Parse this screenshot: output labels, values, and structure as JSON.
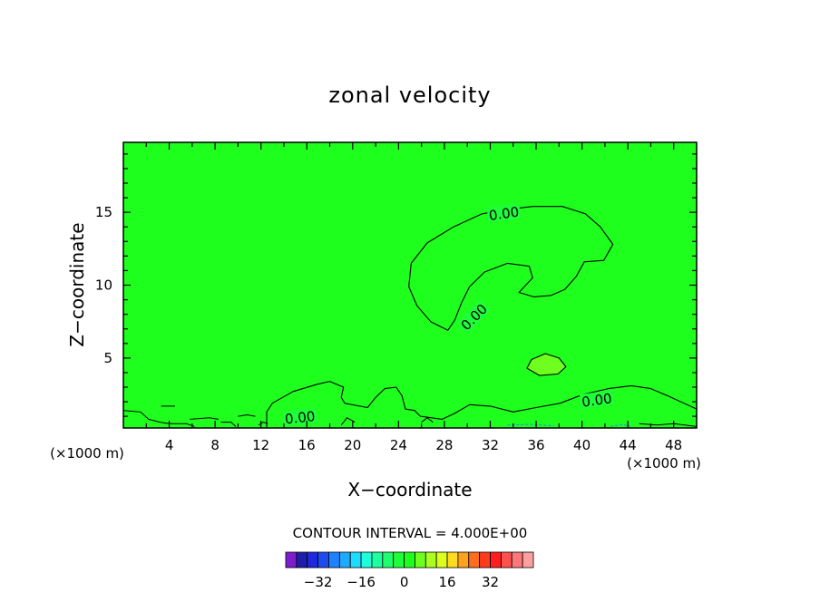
{
  "chart_data": {
    "type": "heatmap",
    "title": "zonal velocity",
    "xlabel": "X−coordinate",
    "ylabel": "Z−coordinate",
    "x_unit": "(×1000 m)",
    "xlim": [
      0,
      50
    ],
    "ylim": [
      0.2,
      19.8
    ],
    "x_ticks": [
      "4",
      "8",
      "12",
      "16",
      "20",
      "24",
      "28",
      "32",
      "36",
      "40",
      "44",
      "48"
    ],
    "y_ticks": [
      "5",
      "10",
      "15"
    ],
    "contour_interval_text": "CONTOUR INTERVAL = 4.000E+00",
    "contour_interval": 4,
    "contour_labels": [
      "0.00",
      "0.00",
      "0.00",
      "0.00"
    ],
    "background_value_range": [
      -4,
      0
    ],
    "regions": [
      {
        "name": "upper positive cell",
        "value_range": [
          0,
          4
        ],
        "poly": [
          [
            25.1,
            11.5
          ],
          [
            26.5,
            12.9
          ],
          [
            28.8,
            14.0
          ],
          [
            31.3,
            14.9
          ],
          [
            33.5,
            15.2
          ],
          [
            35.7,
            15.4
          ],
          [
            38.3,
            15.4
          ],
          [
            40.3,
            14.9
          ],
          [
            41.6,
            14.0
          ],
          [
            42.7,
            12.8
          ],
          [
            41.9,
            11.7
          ],
          [
            40.2,
            11.6
          ],
          [
            39.5,
            10.6
          ],
          [
            38.5,
            9.7
          ],
          [
            37.3,
            9.3
          ],
          [
            35.8,
            9.2
          ],
          [
            34.5,
            9.5
          ],
          [
            35.7,
            10.5
          ],
          [
            35.4,
            11.3
          ],
          [
            33.5,
            11.5
          ],
          [
            31.5,
            10.9
          ],
          [
            30.2,
            9.9
          ],
          [
            29.5,
            8.8
          ],
          [
            28.9,
            7.6
          ],
          [
            28.3,
            6.9
          ],
          [
            26.8,
            7.5
          ],
          [
            25.6,
            8.6
          ],
          [
            24.9,
            9.9
          ]
        ]
      },
      {
        "name": "middle positive patch",
        "value_range": [
          4,
          8
        ],
        "poly": [
          [
            35.2,
            4.3
          ],
          [
            35.6,
            4.9
          ],
          [
            36.8,
            5.3
          ],
          [
            38.0,
            5.0
          ],
          [
            38.6,
            4.4
          ],
          [
            37.9,
            3.9
          ],
          [
            36.3,
            3.8
          ]
        ]
      },
      {
        "name": "lower positive band",
        "value_range": [
          0,
          4
        ],
        "poly": [
          [
            12.5,
            0.2
          ],
          [
            12.5,
            1.3
          ],
          [
            13.0,
            1.9
          ],
          [
            14.8,
            2.7
          ],
          [
            16.9,
            3.2
          ],
          [
            18.0,
            3.4
          ],
          [
            19.2,
            3.0
          ],
          [
            19.0,
            2.3
          ],
          [
            19.3,
            1.9
          ],
          [
            21.3,
            1.6
          ],
          [
            22.0,
            2.3
          ],
          [
            22.8,
            2.9
          ],
          [
            23.8,
            3.0
          ],
          [
            24.3,
            2.4
          ],
          [
            24.6,
            1.5
          ],
          [
            25.4,
            1.4
          ],
          [
            25.9,
            1.0
          ],
          [
            27.8,
            0.8
          ],
          [
            28.9,
            1.2
          ],
          [
            30.2,
            1.8
          ],
          [
            32.0,
            1.7
          ],
          [
            34.0,
            1.3
          ],
          [
            36.0,
            1.6
          ],
          [
            38.1,
            1.9
          ],
          [
            40.1,
            2.5
          ],
          [
            42.3,
            2.9
          ],
          [
            44.3,
            3.1
          ],
          [
            46.0,
            2.9
          ],
          [
            47.5,
            2.4
          ],
          [
            50.0,
            1.5
          ],
          [
            50.0,
            0.2
          ]
        ]
      }
    ],
    "colorbar": {
      "ticks": [
        -32,
        -16,
        0,
        16,
        32
      ],
      "colors": [
        "#7d1ecc",
        "#1e1eaa",
        "#1e28dc",
        "#1e4bf0",
        "#1e82ff",
        "#1eaaff",
        "#1edcff",
        "#1effdc",
        "#1effa0",
        "#1eff6e",
        "#1eff3c",
        "#1eff1e",
        "#6eff1e",
        "#aaff1e",
        "#dcff1e",
        "#ffdc1e",
        "#ffa01e",
        "#ff6e1e",
        "#ff3c1e",
        "#ff1e1e",
        "#ff5050",
        "#ff7878",
        "#ffa0a0"
      ]
    }
  }
}
